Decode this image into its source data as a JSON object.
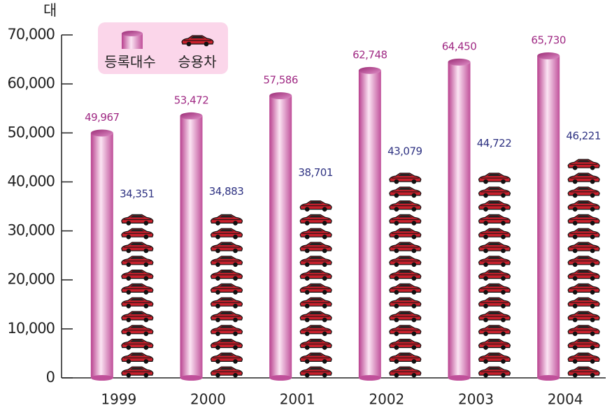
{
  "chart_data": {
    "type": "pictograph-bar",
    "y_label": "대",
    "categories": [
      "1999",
      "2000",
      "2001",
      "2002",
      "2003",
      "2004"
    ],
    "series": [
      {
        "name": "등록대수",
        "color": "#d86cb4",
        "values": [
          49967,
          53472,
          57586,
          62748,
          64450,
          65730
        ],
        "value_labels": [
          "49,967",
          "53,472",
          "57,586",
          "62,748",
          "64,450",
          "65,730"
        ]
      },
      {
        "name": "승용차",
        "color": "#c8202c",
        "values": [
          34351,
          34883,
          38701,
          43079,
          44722,
          46221
        ],
        "value_labels": [
          "34,351",
          "34,883",
          "38,701",
          "43,079",
          "44,722",
          "46,221"
        ]
      }
    ],
    "ylim": [
      0,
      70000
    ],
    "yticks": [
      0,
      {
        "value": 10000,
        "label": "10,000"
      },
      {
        "value": 20000,
        "label": "20,000"
      },
      {
        "value": 30000,
        "label": "30,000"
      },
      {
        "value": 40000,
        "label": "40,000"
      },
      {
        "value": 50000,
        "label": "50,000"
      },
      {
        "value": 60000,
        "label": "60,000"
      },
      {
        "value": 70000,
        "label": "70,000"
      }
    ]
  }
}
